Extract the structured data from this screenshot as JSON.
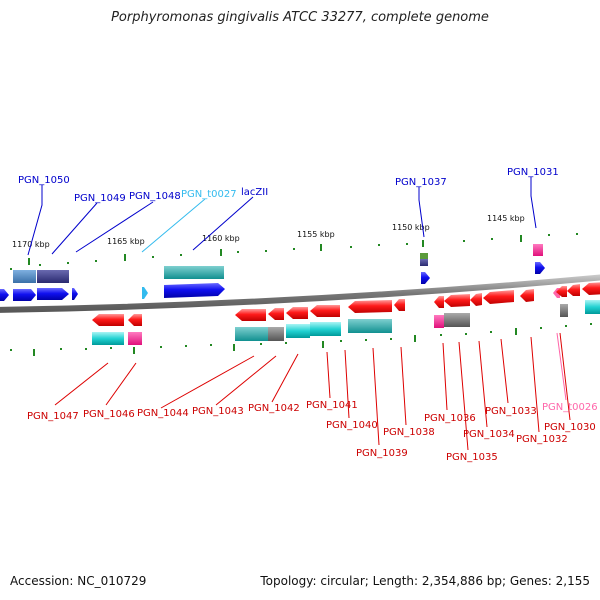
{
  "title": "Porphyromonas gingivalis ATCC 33277, complete genome",
  "footer": {
    "accession": "Accession: NC_010729",
    "summary": "Topology: circular; Length: 2,354,886 bp; Genes: 2,155"
  },
  "colors": {
    "forward_gene": "#0000ee",
    "reverse_gene": "#ee0000",
    "cds_cyan": "#00c8c8",
    "trna": "#33bbee",
    "pseudo_pink": "#ff66aa",
    "grey": "#777777",
    "purple": "#334488",
    "backbone": "#888888",
    "tick": "#228822"
  },
  "scale": {
    "unit": "kbp",
    "labels": [
      "1170 kbp",
      "1165 kbp",
      "1160 kbp",
      "1155 kbp",
      "1150 kbp",
      "1145 kbp"
    ]
  },
  "forward_labels": [
    "PGN_1050",
    "PGN_1049",
    "PGN_1048",
    "PGN_t0027",
    "lacZII",
    "PGN_1037",
    "PGN_1031"
  ],
  "reverse_labels": [
    "PGN_1047",
    "PGN_1046",
    "PGN_1044",
    "PGN_1043",
    "PGN_1042",
    "PGN_1041",
    "PGN_1040",
    "PGN_1039",
    "PGN_1038",
    "PGN_1036",
    "PGN_1035",
    "PGN_1034",
    "PGN_1033",
    "PGN_1032",
    "PGN_t0026",
    "PGN_1030"
  ]
}
